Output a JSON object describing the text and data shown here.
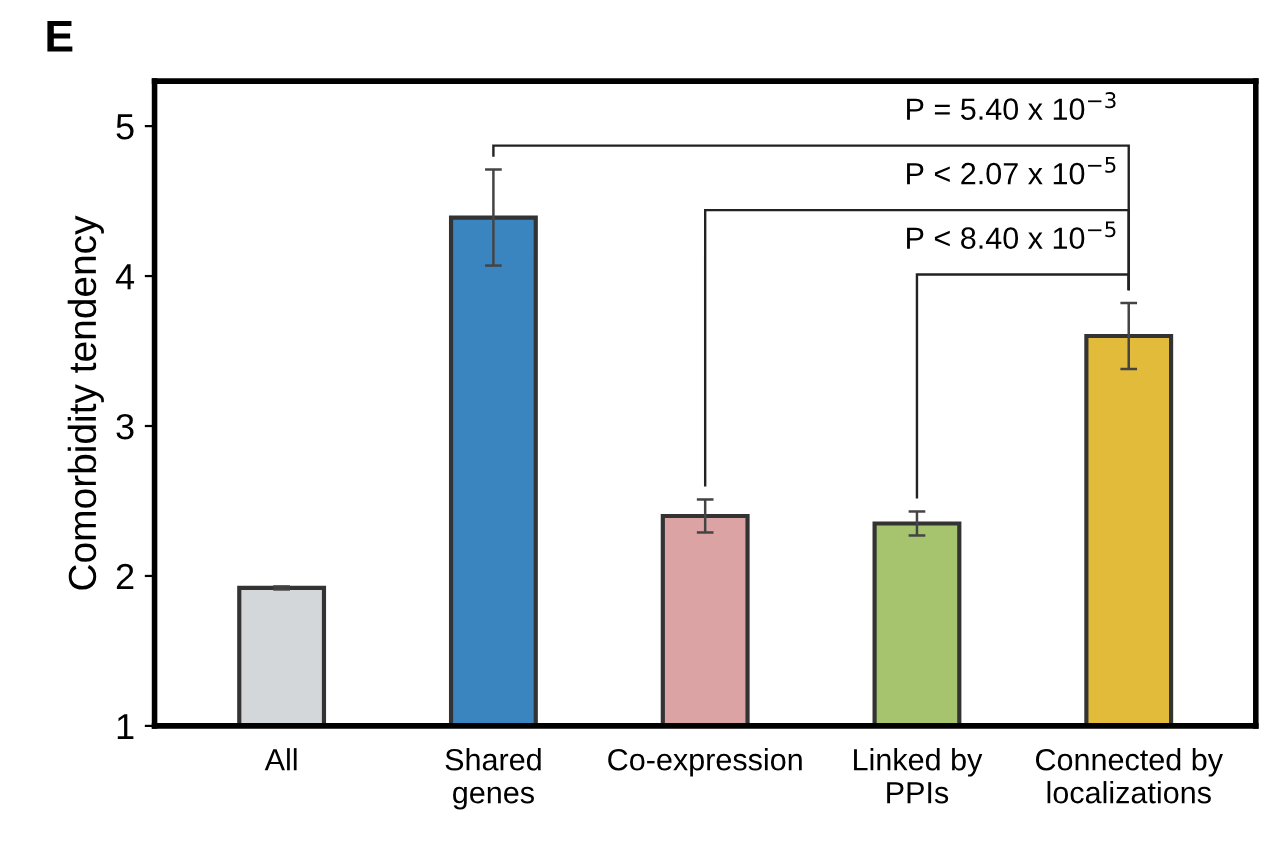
{
  "chart_data": {
    "type": "bar",
    "title": "E",
    "ylabel": "Comorbidity tendency",
    "categories": [
      "All",
      "Shared\ngenes",
      "Co-expression",
      "Linked by\nPPIs",
      "Connected by\nlocalizations"
    ],
    "values": [
      1.92,
      4.39,
      2.4,
      2.35,
      3.6
    ],
    "errors": [
      0.01,
      0.32,
      0.11,
      0.08,
      0.22
    ],
    "colors": [
      "#d4d7da",
      "#3a85c0",
      "#dba3a3",
      "#a6c46e",
      "#e3bb3a"
    ],
    "ylim": [
      1,
      5.3
    ],
    "yticks": [
      1,
      2,
      3,
      4,
      5
    ],
    "grid": false,
    "annotations": [
      "P = 5.40 x 10$^{−3}$",
      "P < 2.07 x 10$^{−5}$",
      "P < 8.40 x 10$^{−5}$"
    ]
  }
}
